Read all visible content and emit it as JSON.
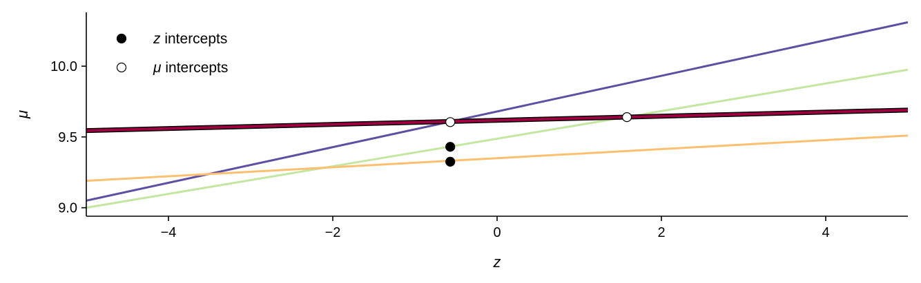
{
  "chart_data": {
    "type": "line",
    "title": "",
    "xlabel": "z",
    "ylabel": "μ",
    "xlim": [
      -5,
      5
    ],
    "ylim": [
      8.94,
      10.38
    ],
    "xticks": [
      -4,
      -2,
      0,
      2,
      4
    ],
    "xtick_labels": [
      "−4",
      "−2",
      "0",
      "2",
      "4"
    ],
    "yticks": [
      9.0,
      9.5,
      10.0
    ],
    "ytick_labels": [
      "9.0",
      "9.5",
      "10.0"
    ],
    "grid": false,
    "legend_position": "top-left",
    "series": [
      {
        "color": "#5e4fa2",
        "x": [
          -5,
          5
        ],
        "y": [
          9.05,
          10.31
        ]
      },
      {
        "color": "#c3e6a0",
        "x": [
          -5,
          5
        ],
        "y": [
          9.0,
          9.975
        ]
      },
      {
        "color": "#fdc070",
        "x": [
          -5,
          5
        ],
        "y": [
          9.19,
          9.51
        ]
      },
      {
        "color": "#9e0142",
        "outline": "#000000",
        "x": [
          -5,
          5
        ],
        "y": [
          9.545,
          9.69
        ]
      }
    ],
    "points": [
      {
        "legend": "z intercepts",
        "fill": "#000000",
        "x": [
          -0.57,
          -0.57
        ],
        "y": [
          9.43,
          9.325
        ]
      },
      {
        "legend": "μ intercepts",
        "fill": "#ffffff",
        "x": [
          -0.57,
          1.58
        ],
        "y": [
          9.605,
          9.64
        ]
      }
    ],
    "legend": [
      {
        "math": "z",
        "text": " intercepts",
        "fill": "#000000"
      },
      {
        "math": "μ",
        "text": " intercepts",
        "fill": "#ffffff"
      }
    ]
  }
}
